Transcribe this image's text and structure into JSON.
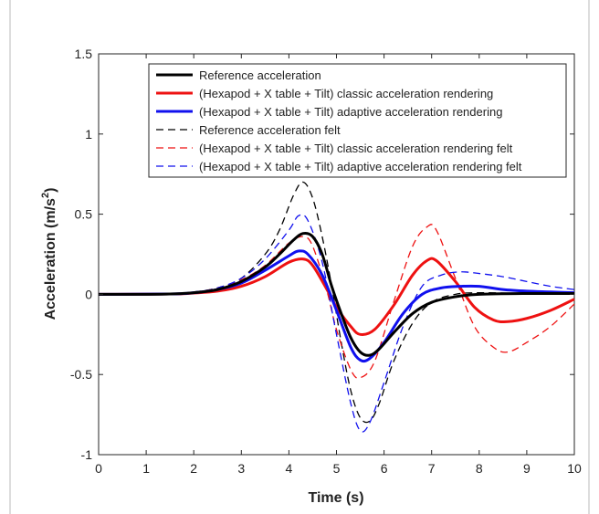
{
  "chart_data": {
    "type": "line",
    "title": "",
    "xlabel": "Time (s)",
    "ylabel": "Acceleration (m/s",
    "ylabel_sup": "2",
    "ylabel_end": ")",
    "xlim": [
      0,
      10
    ],
    "ylim": [
      -1,
      1.5
    ],
    "xticks": [
      0,
      1,
      2,
      3,
      4,
      5,
      6,
      7,
      8,
      9,
      10
    ],
    "xtick_labels": [
      "0",
      "1",
      "2",
      "3",
      "4",
      "5",
      "6",
      "7",
      "8",
      "9",
      "10"
    ],
    "yticks": [
      -1,
      -0.5,
      0,
      0.5,
      1,
      1.5
    ],
    "ytick_labels": [
      "-1",
      "-0.5",
      "0",
      "0.5",
      "1",
      "1.5"
    ],
    "grid": false,
    "legend_position": "top-right",
    "series": [
      {
        "name": "Reference acceleration",
        "color": "#000000",
        "style": "solid",
        "points": [
          [
            0,
            0
          ],
          [
            1,
            0
          ],
          [
            1.5,
            0.002
          ],
          [
            2,
            0.01
          ],
          [
            2.5,
            0.03
          ],
          [
            3,
            0.08
          ],
          [
            3.5,
            0.17
          ],
          [
            3.8,
            0.25
          ],
          [
            4.1,
            0.34
          ],
          [
            4.3,
            0.38
          ],
          [
            4.5,
            0.36
          ],
          [
            4.7,
            0.25
          ],
          [
            4.9,
            0.05
          ],
          [
            5.1,
            -0.12
          ],
          [
            5.3,
            -0.27
          ],
          [
            5.5,
            -0.36
          ],
          [
            5.7,
            -0.38
          ],
          [
            5.9,
            -0.34
          ],
          [
            6.2,
            -0.24
          ],
          [
            6.6,
            -0.12
          ],
          [
            7,
            -0.05
          ],
          [
            7.5,
            -0.015
          ],
          [
            8,
            0
          ],
          [
            9,
            0.005
          ],
          [
            10,
            0.005
          ]
        ]
      },
      {
        "name": "(Hexapod + X table + Tilt) classic acceleration rendering",
        "color": "#ee1111",
        "style": "solid",
        "points": [
          [
            0,
            0
          ],
          [
            1.5,
            0.002
          ],
          [
            2,
            0.008
          ],
          [
            2.5,
            0.02
          ],
          [
            3,
            0.05
          ],
          [
            3.5,
            0.11
          ],
          [
            4,
            0.2
          ],
          [
            4.3,
            0.22
          ],
          [
            4.5,
            0.18
          ],
          [
            4.8,
            0.03
          ],
          [
            5,
            -0.08
          ],
          [
            5.3,
            -0.2
          ],
          [
            5.5,
            -0.25
          ],
          [
            5.8,
            -0.22
          ],
          [
            6.2,
            -0.07
          ],
          [
            6.6,
            0.12
          ],
          [
            6.9,
            0.21
          ],
          [
            7.1,
            0.21
          ],
          [
            7.5,
            0.08
          ],
          [
            7.9,
            -0.08
          ],
          [
            8.3,
            -0.16
          ],
          [
            8.6,
            -0.17
          ],
          [
            9,
            -0.15
          ],
          [
            9.5,
            -0.1
          ],
          [
            10,
            -0.03
          ]
        ]
      },
      {
        "name": "(Hexapod + X table + Tilt) adaptive acceleration rendering",
        "color": "#1010ee",
        "style": "solid",
        "points": [
          [
            0,
            0
          ],
          [
            1.5,
            0.002
          ],
          [
            2,
            0.01
          ],
          [
            2.5,
            0.03
          ],
          [
            3,
            0.07
          ],
          [
            3.5,
            0.15
          ],
          [
            4,
            0.24
          ],
          [
            4.2,
            0.27
          ],
          [
            4.4,
            0.25
          ],
          [
            4.7,
            0.12
          ],
          [
            5,
            -0.1
          ],
          [
            5.3,
            -0.33
          ],
          [
            5.5,
            -0.41
          ],
          [
            5.7,
            -0.4
          ],
          [
            6,
            -0.3
          ],
          [
            6.4,
            -0.12
          ],
          [
            6.8,
            0
          ],
          [
            7.2,
            0.04
          ],
          [
            7.6,
            0.05
          ],
          [
            8,
            0.05
          ],
          [
            8.5,
            0.03
          ],
          [
            9,
            0.02
          ],
          [
            9.5,
            0.015
          ],
          [
            10,
            0.01
          ]
        ]
      },
      {
        "name": "Reference acceleration felt",
        "color": "#000000",
        "style": "dashed",
        "points": [
          [
            0,
            0
          ],
          [
            1.5,
            0.003
          ],
          [
            2,
            0.015
          ],
          [
            2.5,
            0.04
          ],
          [
            3,
            0.1
          ],
          [
            3.5,
            0.25
          ],
          [
            3.8,
            0.4
          ],
          [
            4.1,
            0.62
          ],
          [
            4.3,
            0.7
          ],
          [
            4.5,
            0.6
          ],
          [
            4.7,
            0.36
          ],
          [
            4.9,
            0.05
          ],
          [
            5.1,
            -0.3
          ],
          [
            5.3,
            -0.6
          ],
          [
            5.5,
            -0.77
          ],
          [
            5.7,
            -0.79
          ],
          [
            5.9,
            -0.68
          ],
          [
            6.2,
            -0.42
          ],
          [
            6.6,
            -0.18
          ],
          [
            7,
            -0.05
          ],
          [
            7.5,
            0
          ],
          [
            8,
            0.01
          ],
          [
            9,
            0.005
          ],
          [
            10,
            0.004
          ]
        ]
      },
      {
        "name": "(Hexapod + X table + Tilt) classic acceleration rendering felt",
        "color": "#ee1111",
        "style": "dashed",
        "points": [
          [
            0,
            0
          ],
          [
            1.5,
            0.003
          ],
          [
            2,
            0.012
          ],
          [
            2.5,
            0.04
          ],
          [
            3,
            0.09
          ],
          [
            3.5,
            0.18
          ],
          [
            4,
            0.32
          ],
          [
            4.3,
            0.36
          ],
          [
            4.5,
            0.3
          ],
          [
            4.8,
            0.02
          ],
          [
            5,
            -0.22
          ],
          [
            5.3,
            -0.47
          ],
          [
            5.5,
            -0.52
          ],
          [
            5.8,
            -0.42
          ],
          [
            6.2,
            -0.05
          ],
          [
            6.6,
            0.3
          ],
          [
            6.9,
            0.42
          ],
          [
            7.1,
            0.4
          ],
          [
            7.5,
            0.1
          ],
          [
            7.9,
            -0.2
          ],
          [
            8.3,
            -0.33
          ],
          [
            8.6,
            -0.36
          ],
          [
            9,
            -0.3
          ],
          [
            9.5,
            -0.2
          ],
          [
            10,
            -0.06
          ]
        ]
      },
      {
        "name": "(Hexapod + X table + Tilt) adaptive acceleration rendering felt",
        "color": "#1010ee",
        "style": "dashed",
        "points": [
          [
            0,
            0
          ],
          [
            1.5,
            0.003
          ],
          [
            2,
            0.012
          ],
          [
            2.5,
            0.04
          ],
          [
            3,
            0.1
          ],
          [
            3.5,
            0.22
          ],
          [
            4,
            0.4
          ],
          [
            4.2,
            0.49
          ],
          [
            4.4,
            0.46
          ],
          [
            4.7,
            0.2
          ],
          [
            5,
            -0.25
          ],
          [
            5.3,
            -0.68
          ],
          [
            5.5,
            -0.85
          ],
          [
            5.7,
            -0.8
          ],
          [
            6,
            -0.55
          ],
          [
            6.4,
            -0.2
          ],
          [
            6.8,
            0.05
          ],
          [
            7.2,
            0.12
          ],
          [
            7.6,
            0.14
          ],
          [
            8,
            0.13
          ],
          [
            8.5,
            0.11
          ],
          [
            9,
            0.08
          ],
          [
            9.5,
            0.05
          ],
          [
            10,
            0.03
          ]
        ]
      }
    ]
  }
}
